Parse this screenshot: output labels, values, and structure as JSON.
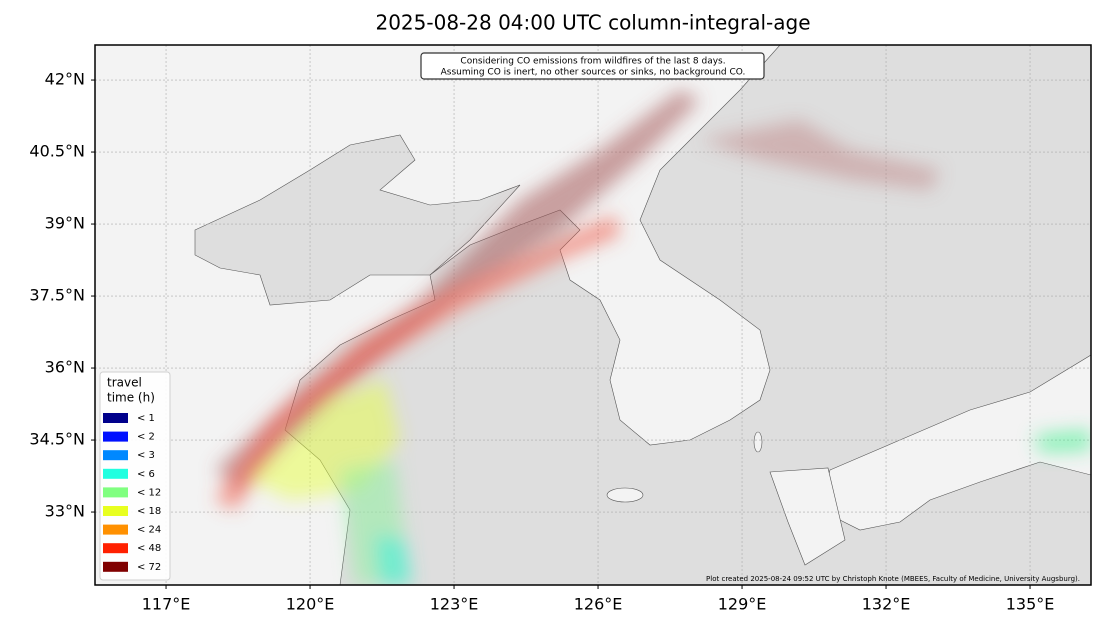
{
  "title": "2025-08-28 04:00 UTC column-integral-age",
  "annotation": [
    "Considering CO emissions from wildfires of the last 8 days.",
    "Assuming CO is inert, no other sources or sinks, no background CO."
  ],
  "credit": "Plot created 2025-08-24 09:52 UTC by Christoph Knote (MBEES, Faculty of Medicine, University Augsburg).",
  "map": {
    "xlim": [
      115.52,
      136.27
    ],
    "ylim": [
      31.48,
      42.73
    ],
    "xticks": [
      {
        "value": 117,
        "label": "117°E"
      },
      {
        "value": 120,
        "label": "120°E"
      },
      {
        "value": 123,
        "label": "123°E"
      },
      {
        "value": 126,
        "label": "126°E"
      },
      {
        "value": 129,
        "label": "129°E"
      },
      {
        "value": 132,
        "label": "132°E"
      },
      {
        "value": 135,
        "label": "135°E"
      }
    ],
    "yticks": [
      {
        "value": 33,
        "label": "33°N"
      },
      {
        "value": 34.5,
        "label": "34.5°N"
      },
      {
        "value": 36,
        "label": "36°N"
      },
      {
        "value": 37.5,
        "label": "37.5°N"
      },
      {
        "value": 39,
        "label": "39°N"
      },
      {
        "value": 40.5,
        "label": "40.5°N"
      },
      {
        "value": 42,
        "label": "42°N"
      }
    ],
    "grid": true
  },
  "legend": {
    "title": [
      "travel",
      "time (h)"
    ],
    "items": [
      {
        "label": "<  1",
        "color": "#00008b"
      },
      {
        "label": "<  2",
        "color": "#0010ff"
      },
      {
        "label": "<  3",
        "color": "#0088ff"
      },
      {
        "label": "<  6",
        "color": "#20ffe0"
      },
      {
        "label": "< 12",
        "color": "#80ff80"
      },
      {
        "label": "< 18",
        "color": "#e8ff20"
      },
      {
        "label": "< 24",
        "color": "#ff9000"
      },
      {
        "label": "< 48",
        "color": "#ff2000"
      },
      {
        "label": "< 72",
        "color": "#800000"
      }
    ]
  }
}
